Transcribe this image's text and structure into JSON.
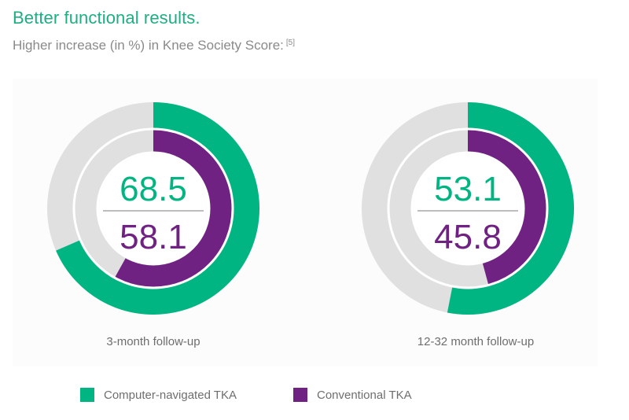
{
  "header": {
    "title": "Better functional results.",
    "subtitle": "Higher increase (in %) in Knee Society Score:",
    "ref": "[5]"
  },
  "colors": {
    "navigated": "#00b582",
    "conventional": "#702283",
    "track": "#e0e0e0",
    "divider": "#bdbdbd"
  },
  "chart_data": [
    {
      "type": "donut",
      "caption": "3-month follow-up",
      "series": [
        {
          "name": "Computer-navigated TKA",
          "value": 68.5,
          "display": "68.5"
        },
        {
          "name": "Conventional TKA",
          "value": 58.1,
          "display": "58.1"
        }
      ],
      "max": 100
    },
    {
      "type": "donut",
      "caption": "12-32 month follow-up",
      "series": [
        {
          "name": "Computer-navigated TKA",
          "value": 53.1,
          "display": "53.1"
        },
        {
          "name": "Conventional TKA",
          "value": 45.8,
          "display": "45.8"
        }
      ],
      "max": 100
    }
  ],
  "legend": {
    "items": [
      {
        "label": "Computer-navigated TKA",
        "color": "#00b582"
      },
      {
        "label": "Conventional TKA",
        "color": "#702283"
      }
    ]
  }
}
